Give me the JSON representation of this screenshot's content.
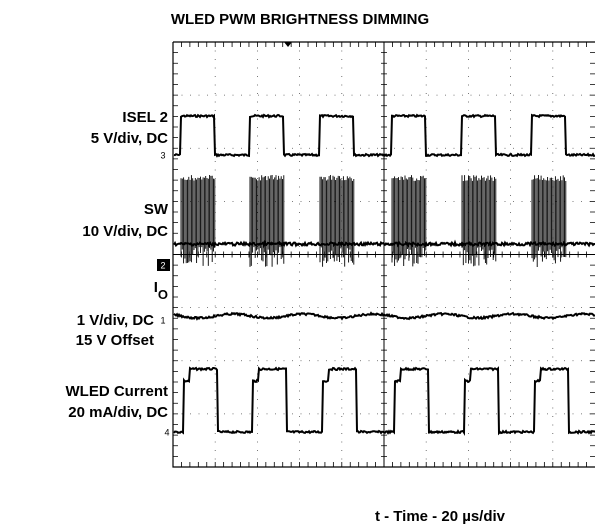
{
  "title": "WLED PWM BRIGHTNESS DIMMING",
  "channels": [
    {
      "name": "ISEL 2",
      "scale": "5 V/div, DC",
      "marker": "3"
    },
    {
      "name": "SW",
      "scale": "10 V/div, DC",
      "marker": "2"
    },
    {
      "name": "I",
      "name_subscript": "O",
      "scale": "1 V/div, DC",
      "offset": "15 V Offset",
      "marker": "1"
    },
    {
      "name": "WLED Current",
      "scale": "20 mA/div, DC",
      "marker": "4"
    }
  ],
  "x_label": "t - Time - 20 µs/div"
}
